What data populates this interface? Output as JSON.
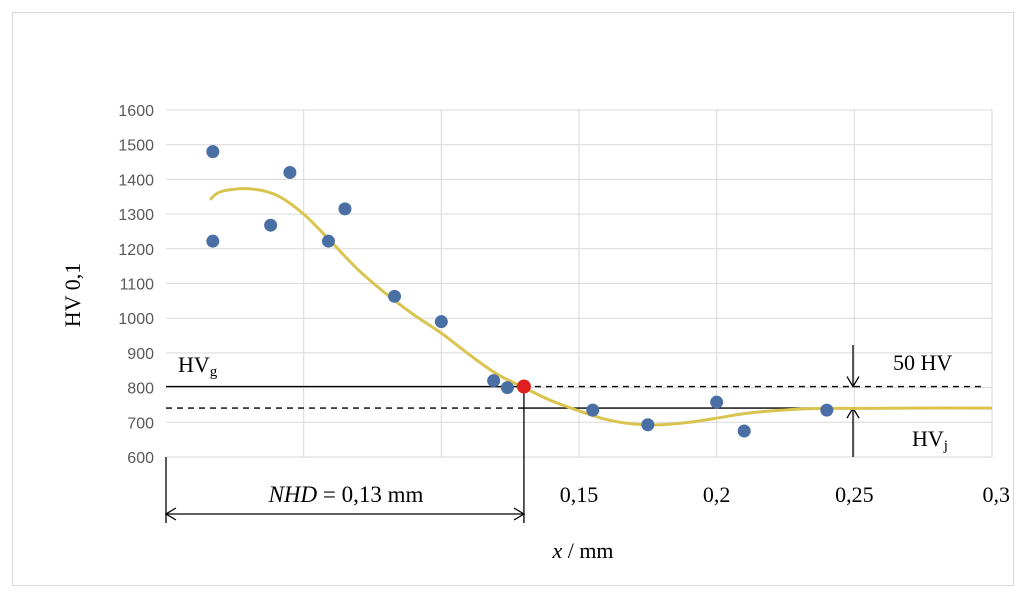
{
  "chart_data": {
    "type": "scatter",
    "title": "",
    "ylabel": "HV 0,1",
    "xlabel_italic": "x",
    "xlabel_rest": " / mm",
    "ylim": [
      600,
      1600
    ],
    "xlim": [
      0,
      0.3
    ],
    "y_ticks": [
      "600",
      "700",
      "800",
      "900",
      "1000",
      "1100",
      "1200",
      "1300",
      "1400",
      "1500",
      "1600"
    ],
    "x_ticks": [
      {
        "value": 0.15,
        "label": "0,15"
      },
      {
        "value": 0.2,
        "label": "0,2"
      },
      {
        "value": 0.25,
        "label": "0,25"
      },
      {
        "value": 0.3,
        "label": "0,3"
      }
    ],
    "grid": true,
    "points": [
      {
        "x": 0.017,
        "y": 1480
      },
      {
        "x": 0.017,
        "y": 1222
      },
      {
        "x": 0.038,
        "y": 1268
      },
      {
        "x": 0.045,
        "y": 1420
      },
      {
        "x": 0.059,
        "y": 1222
      },
      {
        "x": 0.065,
        "y": 1315
      },
      {
        "x": 0.083,
        "y": 1063
      },
      {
        "x": 0.1,
        "y": 990
      },
      {
        "x": 0.119,
        "y": 820
      },
      {
        "x": 0.124,
        "y": 800
      },
      {
        "x": 0.155,
        "y": 735
      },
      {
        "x": 0.175,
        "y": 693
      },
      {
        "x": 0.2,
        "y": 758
      },
      {
        "x": 0.21,
        "y": 675
      },
      {
        "x": 0.24,
        "y": 735
      }
    ],
    "fit_curve": [
      [
        0.016,
        1342
      ],
      [
        0.02,
        1365
      ],
      [
        0.03,
        1373
      ],
      [
        0.04,
        1355
      ],
      [
        0.05,
        1300
      ],
      [
        0.06,
        1220
      ],
      [
        0.07,
        1138
      ],
      [
        0.08,
        1070
      ],
      [
        0.09,
        1010
      ],
      [
        0.1,
        957
      ],
      [
        0.11,
        896
      ],
      [
        0.12,
        840
      ],
      [
        0.13,
        800
      ],
      [
        0.14,
        762
      ],
      [
        0.15,
        733
      ],
      [
        0.16,
        708
      ],
      [
        0.17,
        695
      ],
      [
        0.18,
        693
      ],
      [
        0.19,
        700
      ],
      [
        0.2,
        712
      ],
      [
        0.21,
        725
      ],
      [
        0.22,
        733
      ],
      [
        0.23,
        738
      ],
      [
        0.24,
        740
      ],
      [
        0.25,
        740
      ],
      [
        0.27,
        741
      ],
      [
        0.3,
        741
      ]
    ],
    "nhd_point": {
      "x": 0.13,
      "y": 803
    },
    "hv_g": 803,
    "hv_j": 741,
    "colors": {
      "points": "#4a6fa5",
      "curve": "#d9c450",
      "nhd": "#e02020",
      "grid": "#d9d9d9"
    }
  },
  "annotations": {
    "hvg_main": "HV",
    "hvg_sub": "g",
    "hvj_main": "HV",
    "hvj_sub": "j",
    "delta": "50 HV",
    "nhd_italic": "NHD",
    "nhd_rest": " = 0,13 mm"
  }
}
